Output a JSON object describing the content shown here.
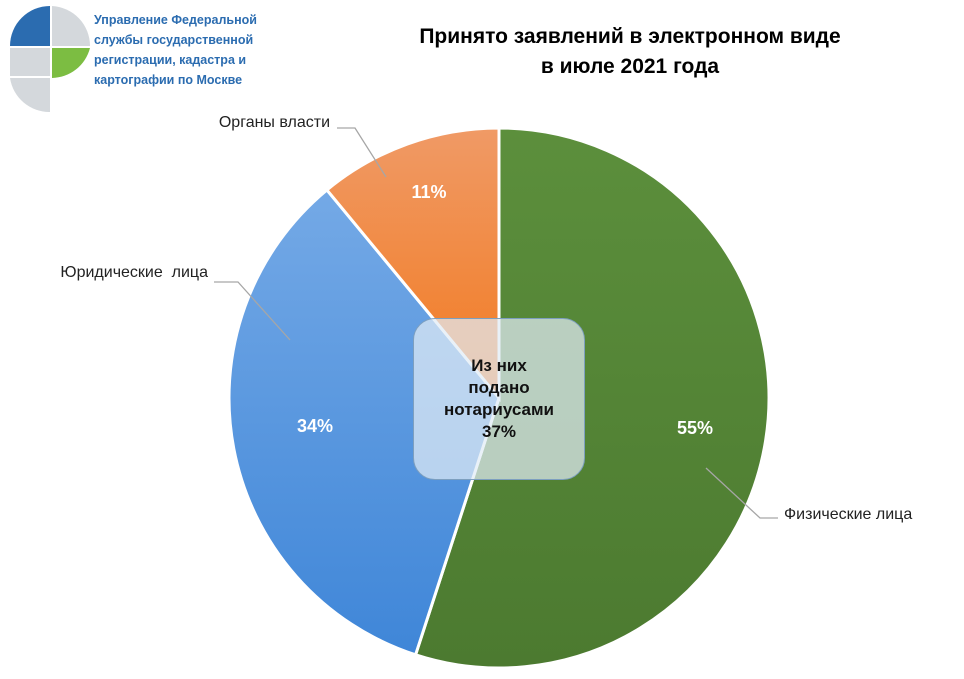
{
  "header": {
    "org_lines": [
      "Управление Федеральной",
      "службы государственной",
      "регистрации, кадастра и",
      "картографии по Москве"
    ]
  },
  "chart_data": {
    "type": "pie",
    "title_lines": [
      "Принято заявлений в электронном виде",
      "в июле 2021 года"
    ],
    "categories": [
      "Физические лица",
      "Юридические  лица",
      "Органы власти"
    ],
    "values": [
      55,
      34,
      11
    ],
    "value_labels": [
      "55%",
      "34%",
      "11%"
    ],
    "colors": [
      "#548235",
      "#4a8fdc",
      "#f0782e"
    ],
    "start": "12 o'clock, clockwise",
    "legend": "none (leader-line labels)",
    "annotation": {
      "lines": [
        "Из них",
        "подано",
        "нотариусами",
        "37%"
      ]
    }
  }
}
